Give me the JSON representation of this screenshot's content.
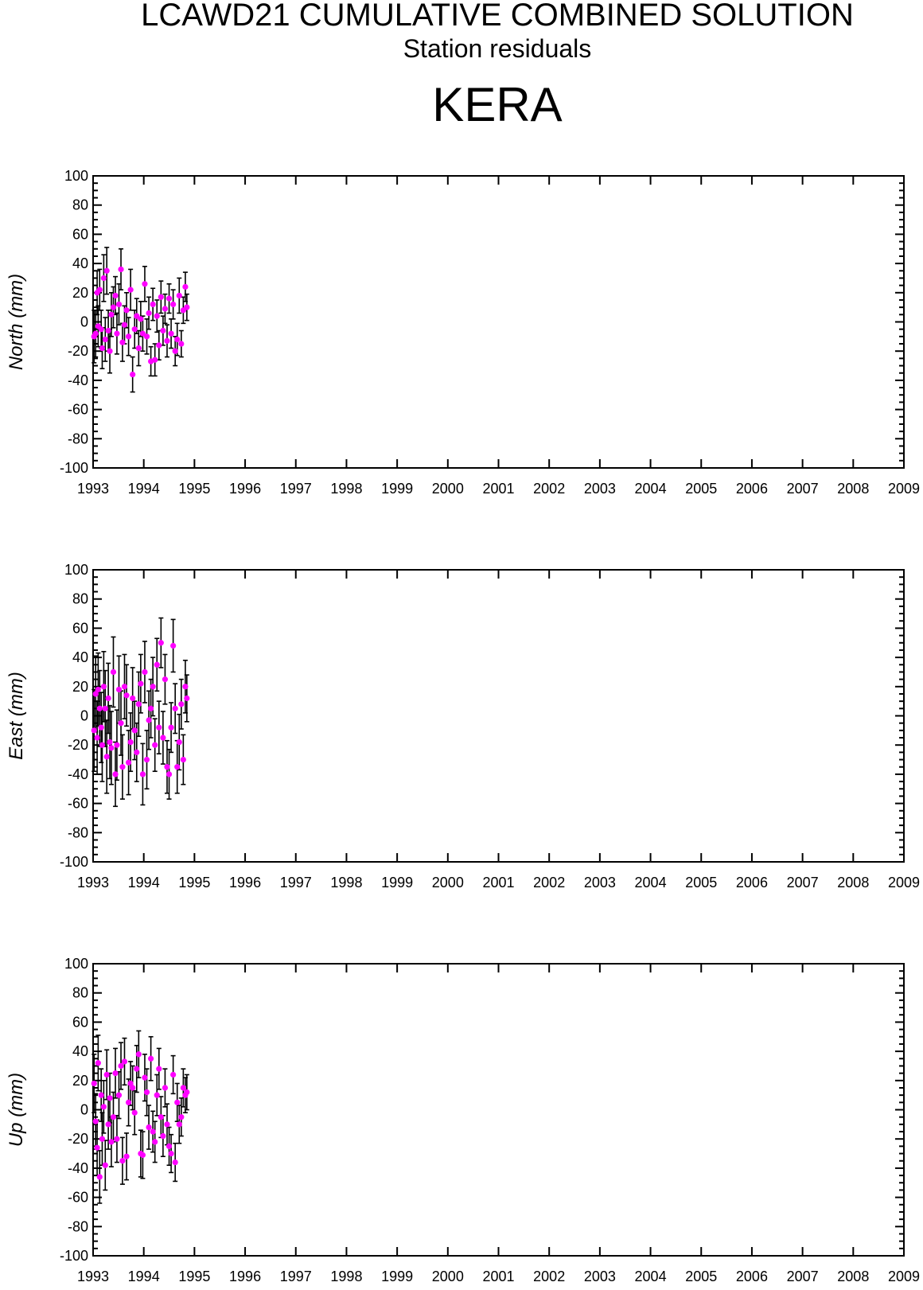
{
  "title": "LCAWD21 CUMULATIVE COMBINED SOLUTION",
  "subtitle": "Station residuals",
  "station": "KERA",
  "colors": {
    "marker": "#ff00ff",
    "errorbar": "#000000",
    "axes": "#000000"
  },
  "chart_data": [
    {
      "type": "scatter",
      "ylabel": "North (mm)",
      "xlim": [
        1993,
        2009
      ],
      "ylim": [
        -100,
        100
      ],
      "xticks": [
        "1993",
        "1994",
        "1995",
        "1996",
        "1997",
        "1998",
        "1999",
        "2000",
        "2001",
        "2002",
        "2003",
        "2004",
        "2005",
        "2006",
        "2007",
        "2008",
        "2009"
      ],
      "yticks": [
        "100",
        "80",
        "60",
        "40",
        "20",
        "0",
        "-20",
        "-40",
        "-60",
        "-80",
        "-100"
      ],
      "grid": false,
      "series": [
        {
          "x": [
            1993.02,
            1993.05,
            1993.08,
            1993.1,
            1993.13,
            1993.16,
            1993.18,
            1993.21,
            1993.24,
            1993.27,
            1993.3,
            1993.33,
            1993.36,
            1993.4,
            1993.44,
            1993.47,
            1993.51,
            1993.55,
            1993.58,
            1993.62,
            1993.66,
            1993.7,
            1993.74,
            1993.78,
            1993.82,
            1993.86,
            1993.9,
            1993.94,
            1993.98,
            1994.02,
            1994.06,
            1994.1,
            1994.14,
            1994.18,
            1994.22,
            1994.26,
            1994.3,
            1994.34,
            1994.38,
            1994.42,
            1994.46,
            1994.5,
            1994.54,
            1994.58,
            1994.62,
            1994.66,
            1994.7,
            1994.74,
            1994.78,
            1994.82,
            1994.85
          ],
          "y": [
            -10,
            -8,
            20,
            -3,
            22,
            -5,
            -18,
            30,
            -12,
            35,
            -6,
            -20,
            5,
            10,
            18,
            -8,
            12,
            36,
            -14,
            -2,
            8,
            -10,
            22,
            -36,
            -5,
            4,
            -18,
            2,
            -8,
            26,
            -10,
            6,
            -27,
            12,
            -26,
            4,
            -16,
            17,
            -6,
            9,
            -13,
            16,
            -8,
            12,
            -20,
            -12,
            18,
            -15,
            8,
            24,
            10
          ],
          "err": [
            18,
            16,
            15,
            14,
            14,
            13,
            14,
            16,
            15,
            16,
            14,
            15,
            15,
            14,
            13,
            14,
            14,
            14,
            13,
            13,
            12,
            13,
            14,
            12,
            13,
            12,
            12,
            12,
            12,
            12,
            12,
            11,
            10,
            11,
            11,
            11,
            10,
            11,
            10,
            10,
            11,
            10,
            10,
            10,
            10,
            11,
            12,
            9,
            9,
            10,
            9
          ]
        }
      ]
    },
    {
      "type": "scatter",
      "ylabel": "East (mm)",
      "xlim": [
        1993,
        2009
      ],
      "ylim": [
        -100,
        100
      ],
      "xticks": [
        "1993",
        "1994",
        "1995",
        "1996",
        "1997",
        "1998",
        "1999",
        "2000",
        "2001",
        "2002",
        "2003",
        "2004",
        "2005",
        "2006",
        "2007",
        "2008",
        "2009"
      ],
      "yticks": [
        "100",
        "80",
        "60",
        "40",
        "20",
        "0",
        "-20",
        "-40",
        "-60",
        "-80",
        "-100"
      ],
      "grid": false,
      "series": [
        {
          "x": [
            1993.02,
            1993.05,
            1993.08,
            1993.1,
            1993.13,
            1993.16,
            1993.18,
            1993.21,
            1993.24,
            1993.27,
            1993.3,
            1993.33,
            1993.36,
            1993.4,
            1993.44,
            1993.47,
            1993.51,
            1993.55,
            1993.58,
            1993.62,
            1993.66,
            1993.7,
            1993.74,
            1993.78,
            1993.82,
            1993.86,
            1993.9,
            1993.94,
            1993.98,
            1994.02,
            1994.06,
            1994.1,
            1994.14,
            1994.18,
            1994.22,
            1994.26,
            1994.3,
            1994.34,
            1994.38,
            1994.42,
            1994.46,
            1994.5,
            1994.54,
            1994.58,
            1994.62,
            1994.66,
            1994.7,
            1994.74,
            1994.78,
            1994.82,
            1994.85
          ],
          "y": [
            -10,
            15,
            -15,
            18,
            5,
            -8,
            -20,
            20,
            5,
            -28,
            12,
            -18,
            -22,
            30,
            -40,
            -20,
            18,
            -5,
            -35,
            20,
            14,
            -32,
            -18,
            12,
            -10,
            -25,
            8,
            22,
            -40,
            30,
            -30,
            -3,
            5,
            20,
            -20,
            35,
            -8,
            50,
            -15,
            25,
            -35,
            -40,
            -8,
            48,
            5,
            -35,
            -18,
            8,
            -30,
            20,
            12
          ],
          "err": [
            28,
            26,
            25,
            25,
            26,
            24,
            25,
            24,
            26,
            25,
            24,
            25,
            25,
            24,
            22,
            24,
            23,
            22,
            22,
            22,
            21,
            22,
            20,
            21,
            20,
            20,
            22,
            20,
            21,
            21,
            20,
            20,
            20,
            20,
            18,
            18,
            18,
            17,
            18,
            17,
            18,
            17,
            17,
            18,
            17,
            18,
            19,
            17,
            17,
            18,
            16
          ]
        }
      ]
    },
    {
      "type": "scatter",
      "ylabel": "Up (mm)",
      "xlim": [
        1993,
        2009
      ],
      "ylim": [
        -100,
        100
      ],
      "xticks": [
        "1993",
        "1994",
        "1995",
        "1996",
        "1997",
        "1998",
        "1999",
        "2000",
        "2001",
        "2002",
        "2003",
        "2004",
        "2005",
        "2006",
        "2007",
        "2008",
        "2009"
      ],
      "yticks": [
        "100",
        "80",
        "60",
        "40",
        "20",
        "0",
        "-20",
        "-40",
        "-60",
        "-80",
        "-100"
      ],
      "grid": false,
      "series": [
        {
          "x": [
            1993.02,
            1993.05,
            1993.08,
            1993.1,
            1993.13,
            1993.16,
            1993.18,
            1993.21,
            1993.24,
            1993.27,
            1993.3,
            1993.33,
            1993.36,
            1993.4,
            1993.44,
            1993.47,
            1993.51,
            1993.55,
            1993.58,
            1993.62,
            1993.66,
            1993.7,
            1993.74,
            1993.78,
            1993.82,
            1993.86,
            1993.9,
            1993.94,
            1993.98,
            1994.02,
            1994.06,
            1994.1,
            1994.14,
            1994.18,
            1994.22,
            1994.26,
            1994.3,
            1994.34,
            1994.38,
            1994.42,
            1994.46,
            1994.5,
            1994.54,
            1994.58,
            1994.62,
            1994.66,
            1994.7,
            1994.74,
            1994.78,
            1994.82,
            1994.85
          ],
          "y": [
            18,
            -8,
            -26,
            32,
            -46,
            10,
            -20,
            2,
            -38,
            24,
            -10,
            8,
            -22,
            -5,
            25,
            -20,
            10,
            30,
            -35,
            33,
            -32,
            5,
            18,
            15,
            -2,
            28,
            38,
            -30,
            -31,
            22,
            12,
            -12,
            35,
            -15,
            -22,
            10,
            28,
            -5,
            -18,
            15,
            -10,
            -25,
            -30,
            24,
            -36,
            5,
            -10,
            -5,
            15,
            10,
            12
          ],
          "err": [
            20,
            19,
            19,
            19,
            18,
            18,
            18,
            18,
            17,
            17,
            17,
            17,
            17,
            17,
            17,
            16,
            16,
            16,
            16,
            16,
            16,
            16,
            15,
            15,
            15,
            16,
            16,
            16,
            16,
            16,
            16,
            15,
            15,
            14,
            14,
            14,
            14,
            14,
            14,
            13,
            14,
            13,
            13,
            13,
            13,
            13,
            13,
            13,
            13,
            12,
            12
          ]
        }
      ]
    }
  ]
}
